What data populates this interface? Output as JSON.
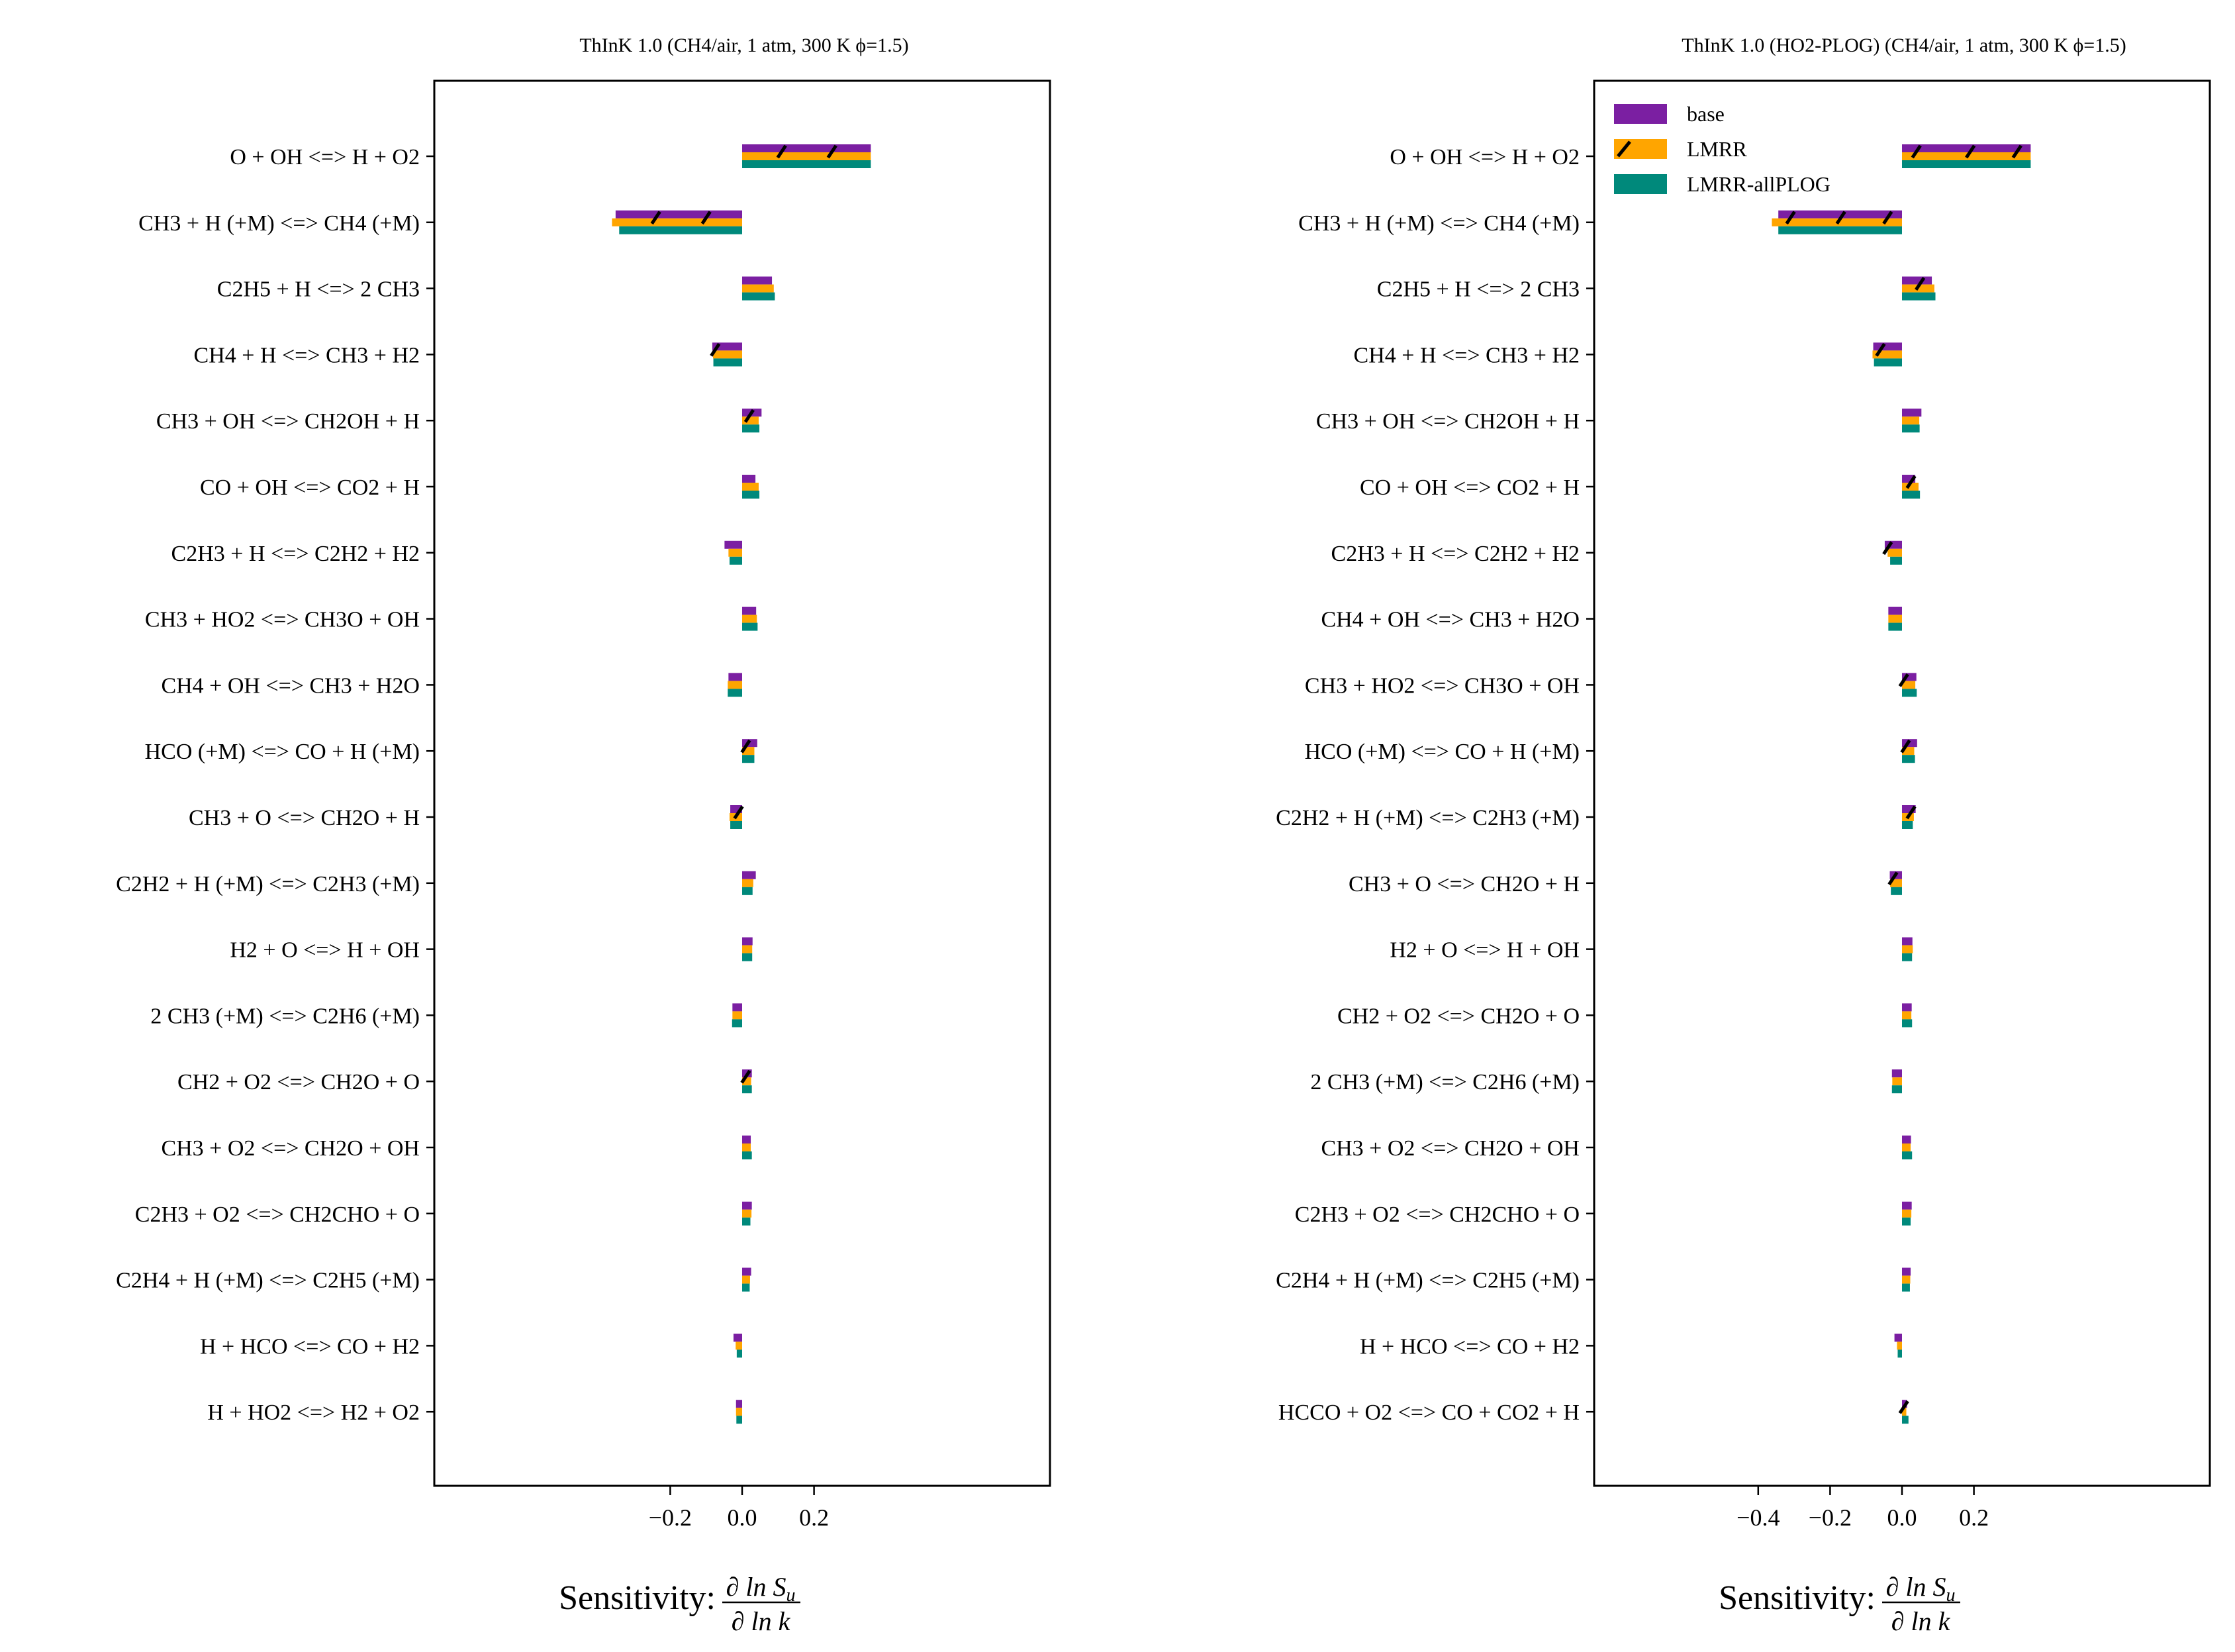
{
  "colors": {
    "base": "#7b1fa2",
    "lmrr": "#ffa500",
    "allplog": "#00897b"
  },
  "chart_data": [
    {
      "type": "bar",
      "orientation": "horizontal",
      "title": "ThInK 1.0 (CH4/air, 1 atm, 300 K ϕ=1.5)",
      "xlabel": "Sensitivity: ∂lnSᵤ / ∂lnk",
      "xlim": [
        -0.4,
        0.4
      ],
      "xticks": [
        -0.2,
        0.0,
        0.2
      ],
      "xtick_labels": [
        "−0.2",
        "0.0",
        "0.2"
      ],
      "grid": false,
      "legend": null,
      "categories": [
        "O + OH <=> H + O2",
        "CH3 + H (+M) <=> CH4 (+M)",
        "C2H5 + H <=> 2 CH3",
        "CH4 + H <=> CH3 + H2",
        "CH3 + OH <=> CH2OH + H",
        "CO + OH <=> CO2 + H",
        "C2H3 + H <=> C2H2 + H2",
        "CH3 + HO2 <=> CH3O + OH",
        "CH4 + OH <=> CH3 + H2O",
        "HCO (+M) <=> CO + H (+M)",
        "CH3 + O <=> CH2O + H",
        "C2H2 + H (+M) <=> C2H3 (+M)",
        "H2 + O <=> H + OH",
        "2 CH3 (+M) <=> C2H6 (+M)",
        "CH2 + O2 <=> CH2O + O",
        "CH3 + O2 <=> CH2O + OH",
        "C2H3 + O2 <=> CH2CHO + O",
        "C2H4 + H (+M) <=> C2H5 (+M)",
        "H + HCO <=> CO + H2",
        "H + HO2 <=> H2 + O2"
      ],
      "series": [
        {
          "key": "base",
          "values": [
            0.358,
            -0.352,
            0.083,
            -0.083,
            0.054,
            0.037,
            -0.049,
            0.039,
            -0.038,
            0.042,
            -0.033,
            0.038,
            0.029,
            -0.027,
            0.027,
            0.024,
            0.027,
            0.025,
            -0.024,
            -0.017
          ]
        },
        {
          "key": "LMRR",
          "values": [
            0.358,
            -0.362,
            0.088,
            -0.081,
            0.046,
            0.046,
            -0.038,
            0.041,
            -0.04,
            0.034,
            -0.035,
            0.031,
            0.028,
            -0.027,
            0.025,
            0.024,
            0.026,
            0.022,
            -0.018,
            -0.017
          ]
        },
        {
          "key": "LMRR-allPLOG",
          "values": [
            0.358,
            -0.342,
            0.091,
            -0.08,
            0.048,
            0.048,
            -0.035,
            0.043,
            -0.04,
            0.034,
            -0.033,
            0.029,
            0.028,
            -0.028,
            0.027,
            0.027,
            0.023,
            0.021,
            -0.015,
            -0.016
          ]
        }
      ],
      "hatched": [
        [
          0.11,
          0.25
        ],
        [
          -0.24,
          -0.1
        ],
        [],
        [
          -0.075
        ],
        [
          0.02
        ],
        [],
        [],
        [],
        [],
        [
          0.01
        ],
        [
          -0.01
        ],
        [],
        [],
        [],
        [
          0.01
        ],
        [],
        [],
        [],
        [],
        []
      ]
    },
    {
      "type": "bar",
      "orientation": "horizontal",
      "title": "ThInK 1.0 (HO2-PLOG) (CH4/air, 1 atm, 300 K ϕ=1.5)",
      "xlabel": "Sensitivity: ∂lnSᵤ / ∂lnk",
      "xlim": [
        -0.4,
        0.4
      ],
      "xticks": [
        -0.4,
        -0.2,
        0.0,
        0.2
      ],
      "xtick_labels": [
        "−0.4",
        "−0.2",
        "0.0",
        "0.2"
      ],
      "grid": false,
      "legend": {
        "position": "top-left",
        "entries": [
          "base",
          "LMRR",
          "LMRR-allPLOG"
        ]
      },
      "categories": [
        "O + OH <=> H + O2",
        "CH3 + H (+M) <=> CH4 (+M)",
        "C2H5 + H <=> 2 CH3",
        "CH4 + H <=> CH3 + H2",
        "CH3 + OH <=> CH2OH + H",
        "CO + OH <=> CO2 + H",
        "C2H3 + H <=> C2H2 + H2",
        "CH4 + OH <=> CH3 + H2O",
        "CH3 + HO2 <=> CH3O + OH",
        "HCO (+M) <=> CO + H (+M)",
        "C2H2 + H (+M) <=> C2H3 (+M)",
        "CH3 + O <=> CH2O + H",
        "H2 + O <=> H + OH",
        "CH2 + O2 <=> CH2O + O",
        "2 CH3 (+M) <=> C2H6 (+M)",
        "CH3 + O2 <=> CH2O + OH",
        "C2H3 + O2 <=> CH2CHO + O",
        "C2H4 + H (+M) <=> C2H5 (+M)",
        "H + HCO <=> CO + H2",
        "HCCO + O2 <=> CO + CO2 + H"
      ],
      "series": [
        {
          "key": "base",
          "values": [
            0.358,
            -0.344,
            0.083,
            -0.08,
            0.054,
            0.037,
            -0.048,
            -0.038,
            0.04,
            0.042,
            0.038,
            -0.034,
            0.029,
            0.027,
            -0.028,
            0.025,
            0.027,
            0.024,
            -0.021,
            0.014
          ]
        },
        {
          "key": "LMRR",
          "values": [
            0.358,
            -0.362,
            0.09,
            -0.082,
            0.048,
            0.046,
            -0.04,
            -0.038,
            0.037,
            0.034,
            0.033,
            -0.033,
            0.03,
            0.026,
            -0.027,
            0.024,
            0.026,
            0.023,
            -0.014,
            0.012
          ]
        },
        {
          "key": "LMRR-allPLOG",
          "values": [
            0.358,
            -0.344,
            0.093,
            -0.078,
            0.049,
            0.05,
            -0.033,
            -0.038,
            0.041,
            0.036,
            0.03,
            -0.031,
            0.028,
            0.028,
            -0.028,
            0.028,
            0.024,
            0.022,
            -0.012,
            0.018
          ]
        }
      ],
      "hatched": [
        [
          0.04,
          0.19,
          0.32
        ],
        [
          -0.31,
          -0.17,
          -0.04
        ],
        [
          0.05
        ],
        [
          -0.06
        ],
        [],
        [
          0.025
        ],
        [
          -0.04
        ],
        [],
        [
          0.005
        ],
        [
          0.01
        ],
        [
          0.025
        ],
        [
          -0.025
        ],
        [],
        [],
        [],
        [],
        [],
        [],
        [],
        [
          0.005
        ]
      ]
    }
  ]
}
